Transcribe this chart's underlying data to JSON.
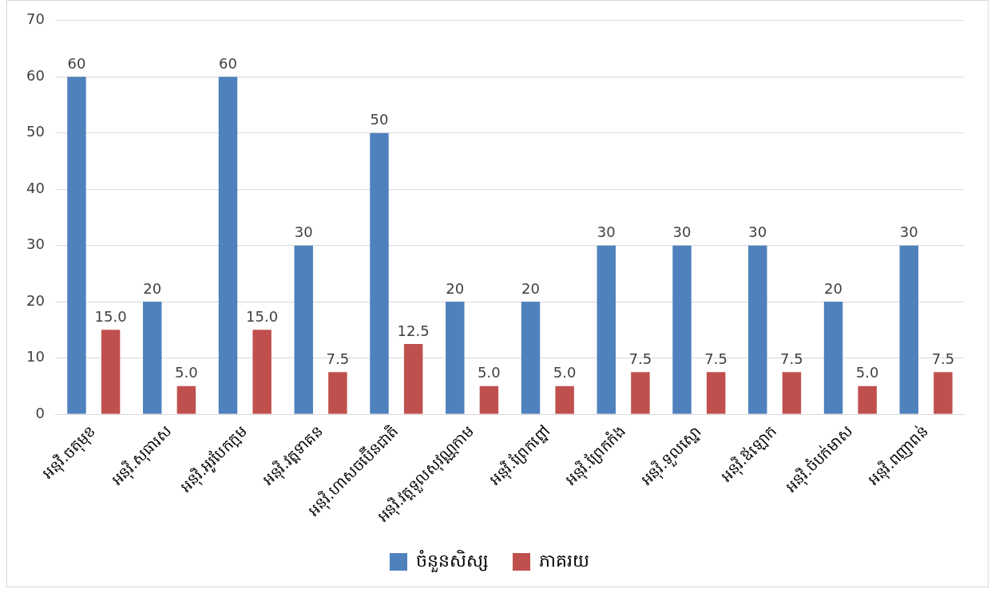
{
  "chart_data": {
    "type": "bar",
    "categories": [
      "អនុវិ.ចតុមុខ",
      "អនុវិ.សុធារស",
      "អនុវិ.អូរបែកក្អម",
      "អនុវិ.វត្តទាគន",
      "អនុវិ.ហាសចប៊ើនជាតិ",
      "អនុវិ.វត្តទួលសុវណ្ណកាម",
      "អនុវិ.ព្រែកព្នៅ",
      "អនុវិ.ព្រែកកំង",
      "អនុវិ.ទួលស្នោ",
      "អនុវិ.ឪឡោក",
      "អនុវិ.ចំបក់មាស",
      "អនុវិ.ពញាពន់"
    ],
    "series": [
      {
        "name": "ចំនួនសិស្ស",
        "color": "#4f81bd",
        "values": [
          60,
          20,
          60,
          30,
          50,
          20,
          20,
          30,
          30,
          30,
          20,
          30
        ],
        "value_labels": [
          "60",
          "20",
          "60",
          "30",
          "50",
          "20",
          "20",
          "30",
          "30",
          "30",
          "20",
          "30"
        ]
      },
      {
        "name": "ភាគរយ",
        "color": "#c0504d",
        "values": [
          15,
          5,
          15,
          7.5,
          12.5,
          5,
          5,
          7.5,
          7.5,
          7.5,
          5,
          7.5
        ],
        "value_labels": [
          "15.0",
          "5.0",
          "15.0",
          "7.5",
          "12.5",
          "5.0",
          "5.0",
          "7.5",
          "7.5",
          "7.5",
          "5.0",
          "7.5"
        ]
      }
    ],
    "ylim": [
      0,
      70
    ],
    "yticks": [
      0,
      10,
      20,
      30,
      40,
      50,
      60,
      70
    ],
    "grid": "y",
    "legend": "bottom"
  }
}
